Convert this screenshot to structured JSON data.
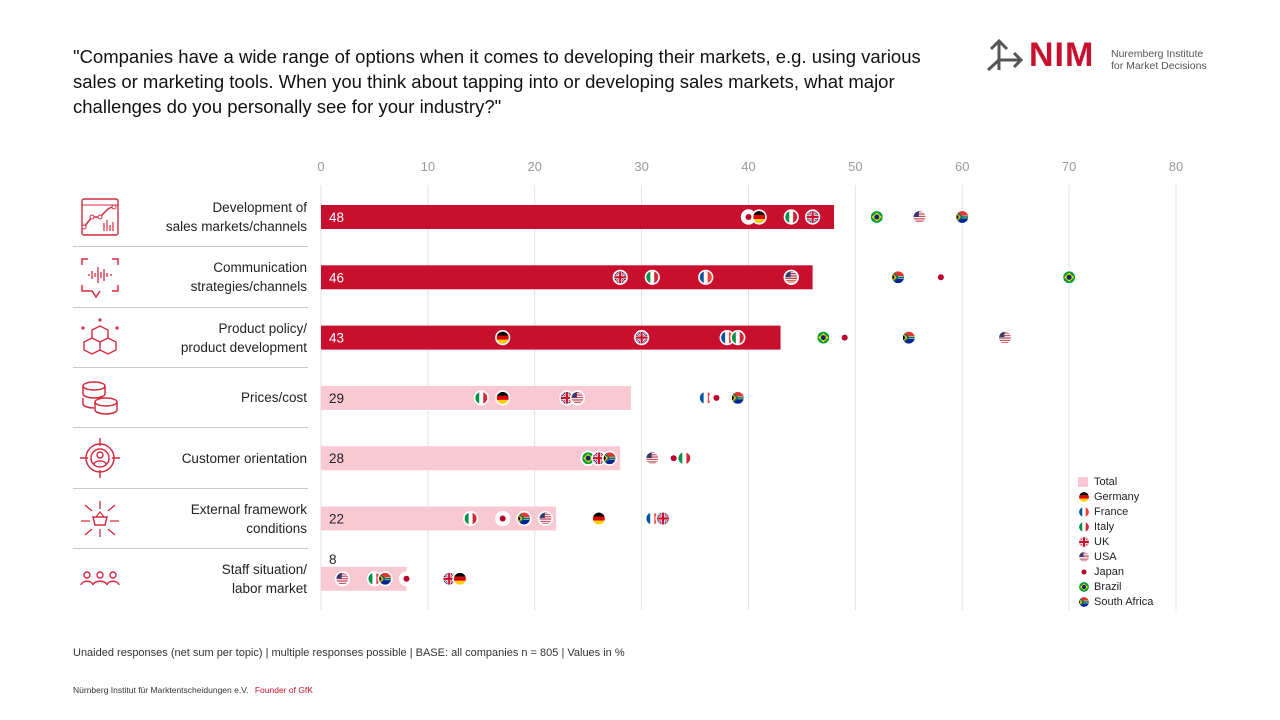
{
  "question": "\"Companies have a wide range of options when it comes to developing their markets, e.g. using various sales or marketing tools. When you think about tapping into or developing sales markets, what major challenges do you personally see for your industry?\"",
  "logo": {
    "mark": "NIM",
    "line1": "Nuremberg Institute",
    "line2": "for Market Decisions",
    "brand_color": "#c8102e"
  },
  "legend": {
    "total": "Total",
    "items": [
      "Germany",
      "France",
      "Italy",
      "UK",
      "USA",
      "Japan",
      "Brazil",
      "South Africa"
    ]
  },
  "footnote": "Unaided responses  (net sum per topic) | multiple responses  possible  | BASE:  all companies n = 805 | Values  in %",
  "footer": {
    "org": "Nürnberg Institut für Marktentscheidungen e.V.",
    "tagline": "Founder of GfK"
  },
  "chart_data": {
    "type": "bar",
    "orientation": "horizontal",
    "title": "",
    "xlabel": "",
    "ylabel": "",
    "xlim": [
      0,
      80
    ],
    "ticks": [
      0,
      10,
      20,
      30,
      40,
      50,
      60,
      70,
      80
    ],
    "grid": true,
    "legend_position": "bottom-right",
    "colors": {
      "top3": "#c8102e",
      "other": "#f8c9d2"
    },
    "categories": [
      {
        "label": "Development of sales markets/channels",
        "lines": [
          "Development of",
          "sales markets/channels"
        ],
        "icon": "chart-growth-icon",
        "total": 48,
        "highlight": true,
        "countries": {
          "France": 40,
          "Japan": 40,
          "Germany": 41,
          "Italy": 44,
          "UK": 46,
          "Brazil": 52,
          "USA": 56,
          "South Africa": 60
        }
      },
      {
        "label": "Communication strategies/channels",
        "lines": [
          "Communication",
          "strategies/channels"
        ],
        "icon": "voice-message-icon",
        "total": 46,
        "highlight": true,
        "countries": {
          "UK": 28,
          "Italy": 31,
          "France": 36,
          "Germany": 44,
          "USA": 44,
          "South Africa": 54,
          "Japan": 58,
          "Brazil": 70
        }
      },
      {
        "label": "Product policy/product development",
        "lines": [
          "Product policy/",
          "product development"
        ],
        "icon": "cubes-network-icon",
        "total": 43,
        "highlight": true,
        "countries": {
          "Germany": 17,
          "UK": 30,
          "France": 38,
          "Italy": 39,
          "Brazil": 47,
          "Japan": 49,
          "South Africa": 55,
          "USA": 64
        }
      },
      {
        "label": "Prices/cost",
        "lines": [
          "Prices/cost"
        ],
        "icon": "coins-icon",
        "total": 29,
        "highlight": false,
        "countries": {
          "Italy": 15,
          "Germany": 17,
          "UK": 23,
          "USA": 24,
          "France": 36,
          "Japan": 37,
          "South Africa": 39
        }
      },
      {
        "label": "Customer orientation",
        "lines": [
          "Customer orientation"
        ],
        "icon": "target-person-icon",
        "total": 28,
        "highlight": false,
        "countries": {
          "Germany": 25,
          "Brazil": 25,
          "UK": 26,
          "South Africa": 27,
          "USA": 31,
          "Italy": 34,
          "Japan": 33
        }
      },
      {
        "label": "External framework conditions",
        "lines": [
          "External framework",
          "conditions"
        ],
        "icon": "basket-arrows-icon",
        "total": 22,
        "highlight": false,
        "countries": {
          "Italy": 14,
          "Japan": 17,
          "South Africa": 19,
          "USA": 21,
          "Germany": 26,
          "France": 31,
          "UK": 32
        }
      },
      {
        "label": "Staff situation/labor market",
        "lines": [
          "Staff situation/",
          "labor market"
        ],
        "icon": "people-group-icon",
        "total": 8,
        "highlight": false,
        "label_above": true,
        "countries": {
          "USA": 2,
          "Italy": 5,
          "South Africa": 6,
          "Japan": 8,
          "UK": 12,
          "Germany": 13
        }
      }
    ]
  }
}
